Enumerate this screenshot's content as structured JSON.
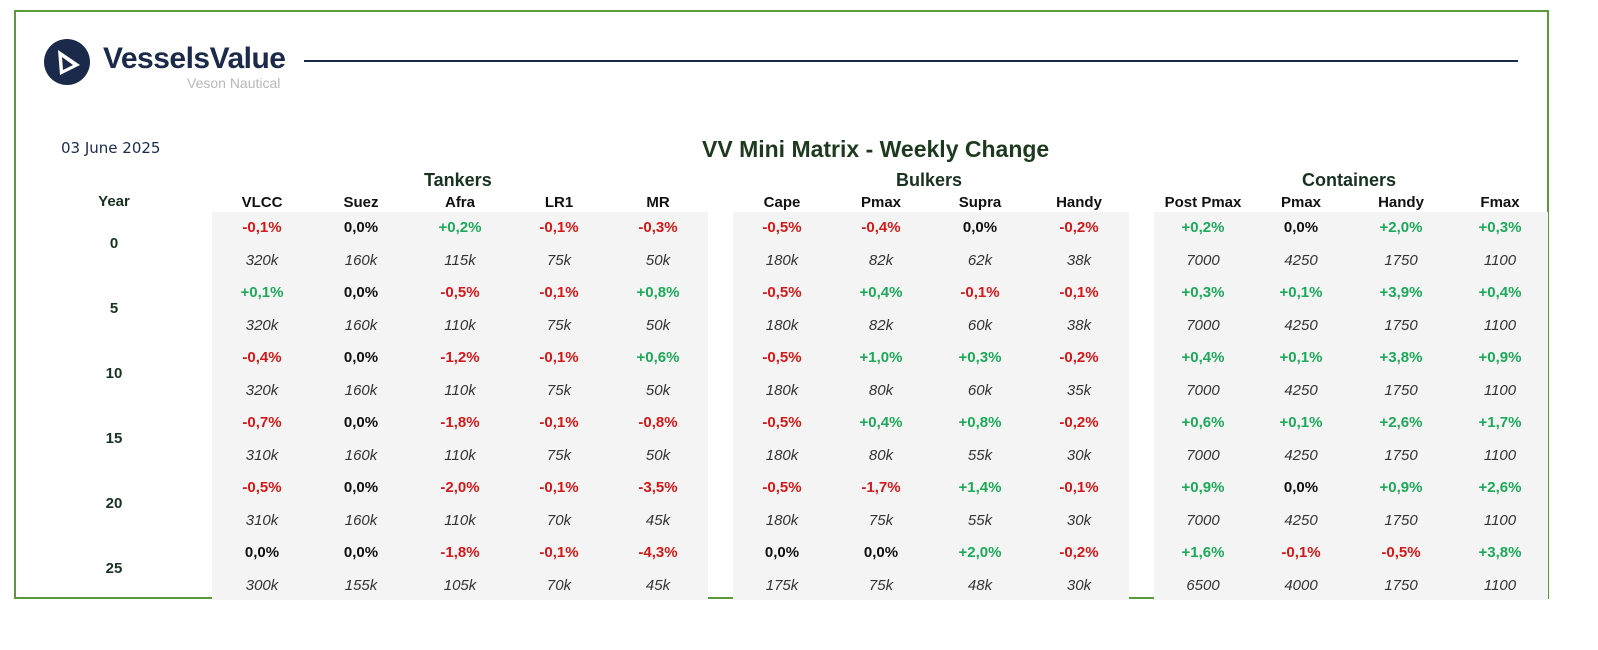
{
  "brand": {
    "name": "VesselsValue",
    "subtitle": "Veson Nautical"
  },
  "date": "03 June 2025",
  "title": "VV Mini Matrix - Weekly Change",
  "year_label": "Year",
  "colors": {
    "positive": "#1ea85a",
    "negative": "#d21919",
    "neutral": "#111111",
    "border": "#5a9a3a",
    "brand": "#1b2a4a"
  },
  "groups": [
    {
      "name": "Tankers",
      "columns": [
        "VLCC",
        "Suez",
        "Afra",
        "LR1",
        "MR"
      ]
    },
    {
      "name": "Bulkers",
      "columns": [
        "Cape",
        "Pmax",
        "Supra",
        "Handy"
      ]
    },
    {
      "name": "Containers",
      "columns": [
        "Post Pmax",
        "Pmax",
        "Handy",
        "Fmax"
      ]
    }
  ],
  "rows": [
    {
      "year": "0",
      "changes": [
        "-0,1%",
        "0,0%",
        "+0,2%",
        "-0,1%",
        "-0,3%",
        "-0,5%",
        "-0,4%",
        "0,0%",
        "-0,2%",
        "+0,2%",
        "0,0%",
        "+2,0%",
        "+0,3%"
      ],
      "sizes": [
        "320k",
        "160k",
        "115k",
        "75k",
        "50k",
        "180k",
        "82k",
        "62k",
        "38k",
        "7000",
        "4250",
        "1750",
        "1100"
      ]
    },
    {
      "year": "5",
      "changes": [
        "+0,1%",
        "0,0%",
        "-0,5%",
        "-0,1%",
        "+0,8%",
        "-0,5%",
        "+0,4%",
        "-0,1%",
        "-0,1%",
        "+0,3%",
        "+0,1%",
        "+3,9%",
        "+0,4%"
      ],
      "sizes": [
        "320k",
        "160k",
        "110k",
        "75k",
        "50k",
        "180k",
        "82k",
        "60k",
        "38k",
        "7000",
        "4250",
        "1750",
        "1100"
      ]
    },
    {
      "year": "10",
      "changes": [
        "-0,4%",
        "0,0%",
        "-1,2%",
        "-0,1%",
        "+0,6%",
        "-0,5%",
        "+1,0%",
        "+0,3%",
        "-0,2%",
        "+0,4%",
        "+0,1%",
        "+3,8%",
        "+0,9%"
      ],
      "sizes": [
        "320k",
        "160k",
        "110k",
        "75k",
        "50k",
        "180k",
        "80k",
        "60k",
        "35k",
        "7000",
        "4250",
        "1750",
        "1100"
      ]
    },
    {
      "year": "15",
      "changes": [
        "-0,7%",
        "0,0%",
        "-1,8%",
        "-0,1%",
        "-0,8%",
        "-0,5%",
        "+0,4%",
        "+0,8%",
        "-0,2%",
        "+0,6%",
        "+0,1%",
        "+2,6%",
        "+1,7%"
      ],
      "sizes": [
        "310k",
        "160k",
        "110k",
        "75k",
        "50k",
        "180k",
        "80k",
        "55k",
        "30k",
        "7000",
        "4250",
        "1750",
        "1100"
      ]
    },
    {
      "year": "20",
      "changes": [
        "-0,5%",
        "0,0%",
        "-2,0%",
        "-0,1%",
        "-3,5%",
        "-0,5%",
        "-1,7%",
        "+1,4%",
        "-0,1%",
        "+0,9%",
        "0,0%",
        "+0,9%",
        "+2,6%"
      ],
      "sizes": [
        "310k",
        "160k",
        "110k",
        "70k",
        "45k",
        "180k",
        "75k",
        "55k",
        "30k",
        "7000",
        "4250",
        "1750",
        "1100"
      ]
    },
    {
      "year": "25",
      "changes": [
        "0,0%",
        "0,0%",
        "-1,8%",
        "-0,1%",
        "-4,3%",
        "0,0%",
        "0,0%",
        "+2,0%",
        "-0,2%",
        "+1,6%",
        "-0,1%",
        "-0,5%",
        "+3,8%"
      ],
      "sizes": [
        "300k",
        "155k",
        "105k",
        "70k",
        "45k",
        "175k",
        "75k",
        "48k",
        "30k",
        "6500",
        "4000",
        "1750",
        "1100"
      ]
    }
  ]
}
